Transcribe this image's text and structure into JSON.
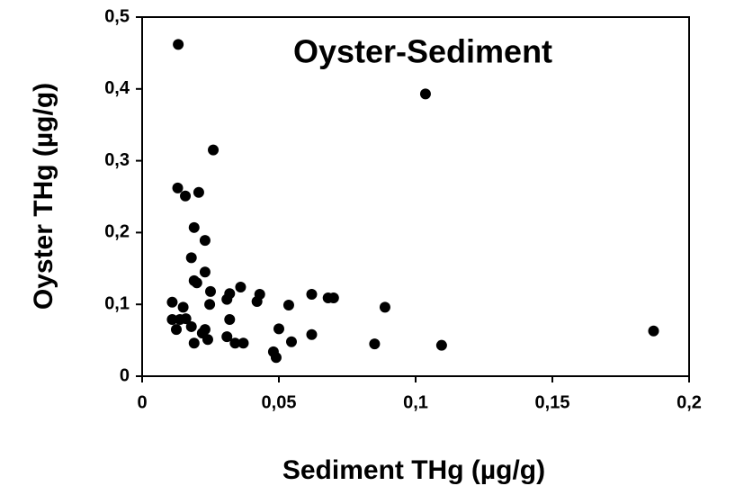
{
  "chart_data": {
    "type": "scatter",
    "title": "Oyster-Sediment",
    "x_label": "Sediment THg (µg/g)",
    "y_label": "Oyster THg (µg/g)",
    "color": "#000000",
    "x": [
      0.0132,
      0.1036,
      0.026,
      0.013,
      0.0158,
      0.0207,
      0.019,
      0.023,
      0.018,
      0.023,
      0.019,
      0.02,
      0.036,
      0.025,
      0.043,
      0.032,
      0.062,
      0.068,
      0.07,
      0.042,
      0.031,
      0.011,
      0.0536,
      0.0247,
      0.0888,
      0.015,
      0.011,
      0.0138,
      0.016,
      0.032,
      0.0125,
      0.018,
      0.023,
      0.022,
      0.05,
      0.062,
      0.031,
      0.024,
      0.034,
      0.037,
      0.019,
      0.0546,
      0.085,
      0.048,
      0.049,
      0.1095,
      0.187
    ],
    "values": [
      0.462,
      0.393,
      0.315,
      0.262,
      0.251,
      0.256,
      0.207,
      0.189,
      0.165,
      0.145,
      0.133,
      0.13,
      0.124,
      0.118,
      0.114,
      0.115,
      0.114,
      0.109,
      0.109,
      0.104,
      0.107,
      0.103,
      0.099,
      0.1,
      0.096,
      0.096,
      0.079,
      0.079,
      0.08,
      0.079,
      0.065,
      0.069,
      0.065,
      0.06,
      0.066,
      0.058,
      0.055,
      0.051,
      0.046,
      0.046,
      0.046,
      0.048,
      0.045,
      0.034,
      0.026,
      0.043,
      0.063
    ],
    "xlim": [
      0,
      0.2
    ],
    "xticks": [
      0,
      {
        "value": 0.05,
        "label": "0,05"
      },
      {
        "value": 0.1,
        "label": "0,1"
      },
      {
        "value": 0.15,
        "label": "0,15"
      },
      {
        "value": 0.2,
        "label": "0,2"
      }
    ],
    "ylim": [
      0,
      0.5
    ],
    "yticks": [
      0,
      {
        "value": 0.1,
        "label": "0,1"
      },
      {
        "value": 0.2,
        "label": "0,2"
      },
      {
        "value": 0.3,
        "label": "0,3"
      },
      {
        "value": 0.4,
        "label": "0,4"
      },
      {
        "value": 0.5,
        "label": "0,5"
      }
    ],
    "grid": false
  }
}
